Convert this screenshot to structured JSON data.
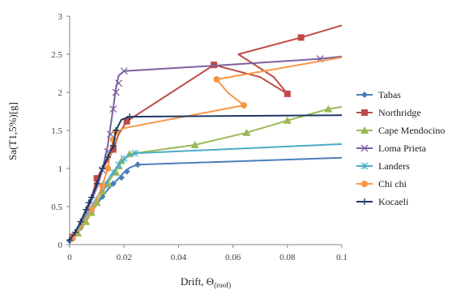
{
  "chart_data": {
    "type": "line",
    "title": "",
    "xlabel": "Drift, Θ",
    "xlabel_sub": "(roof)",
    "ylabel": "Sa(T1,5%)[g]",
    "xlim": [
      0,
      0.1
    ],
    "ylim": [
      0,
      3
    ],
    "xticks": [
      "0",
      "0.02",
      "0.04",
      "0.06",
      "0.08",
      "0.1"
    ],
    "yticks": [
      "0",
      "0.5",
      "1",
      "1.5",
      "2",
      "2.5",
      "3"
    ],
    "grid": false,
    "legend_position": "right",
    "series": [
      {
        "name": "Tabas",
        "color": "#4a7ebb",
        "marker": "diamond",
        "points": [
          [
            0,
            0.05
          ],
          [
            0.002,
            0.12
          ],
          [
            0.004,
            0.22
          ],
          [
            0.006,
            0.32
          ],
          [
            0.008,
            0.43
          ],
          [
            0.01,
            0.53
          ],
          [
            0.012,
            0.63
          ],
          [
            0.014,
            0.72
          ],
          [
            0.016,
            0.8
          ],
          [
            0.018,
            0.87
          ],
          [
            0.02,
            0.95
          ],
          [
            0.022,
            1.01
          ],
          [
            0.025,
            1.05
          ],
          [
            0.1,
            1.14
          ]
        ],
        "marked_points": [
          [
            0,
            0.05
          ],
          [
            0.004,
            0.22
          ],
          [
            0.008,
            0.43
          ],
          [
            0.012,
            0.63
          ],
          [
            0.016,
            0.8
          ],
          [
            0.019,
            0.88
          ],
          [
            0.021,
            0.96
          ],
          [
            0.025,
            1.05
          ]
        ]
      },
      {
        "name": "Northridge",
        "color": "#be4b48",
        "marker": "square",
        "points": [
          [
            0,
            0.06
          ],
          [
            0.002,
            0.15
          ],
          [
            0.004,
            0.3
          ],
          [
            0.006,
            0.45
          ],
          [
            0.008,
            0.6
          ],
          [
            0.01,
            0.87
          ],
          [
            0.012,
            1.0
          ],
          [
            0.014,
            1.1
          ],
          [
            0.016,
            1.25
          ],
          [
            0.018,
            1.45
          ],
          [
            0.021,
            1.62
          ],
          [
            0.053,
            2.36
          ],
          [
            0.07,
            2.2
          ],
          [
            0.08,
            1.98
          ],
          [
            0.075,
            2.2
          ],
          [
            0.062,
            2.5
          ],
          [
            0.085,
            2.72
          ],
          [
            0.1,
            2.88
          ]
        ],
        "marked_points": [
          [
            0.001,
            0.1
          ],
          [
            0.01,
            0.87
          ],
          [
            0.016,
            1.25
          ],
          [
            0.021,
            1.62
          ],
          [
            0.053,
            2.36
          ],
          [
            0.08,
            1.98
          ],
          [
            0.085,
            2.72
          ]
        ]
      },
      {
        "name": "Cape Mendocino",
        "color": "#98b954",
        "marker": "triangle",
        "points": [
          [
            0,
            0.05
          ],
          [
            0.003,
            0.15
          ],
          [
            0.006,
            0.3
          ],
          [
            0.008,
            0.42
          ],
          [
            0.01,
            0.55
          ],
          [
            0.012,
            0.68
          ],
          [
            0.014,
            0.8
          ],
          [
            0.016,
            0.92
          ],
          [
            0.018,
            1.03
          ],
          [
            0.02,
            1.12
          ],
          [
            0.022,
            1.19
          ],
          [
            0.046,
            1.31
          ],
          [
            0.065,
            1.47
          ],
          [
            0.08,
            1.63
          ],
          [
            0.095,
            1.78
          ],
          [
            0.1,
            1.81
          ]
        ],
        "marked_points": [
          [
            0.003,
            0.15
          ],
          [
            0.006,
            0.3
          ],
          [
            0.008,
            0.42
          ],
          [
            0.01,
            0.55
          ],
          [
            0.012,
            0.7
          ],
          [
            0.014,
            0.8
          ],
          [
            0.017,
            0.95
          ],
          [
            0.018,
            1.03
          ],
          [
            0.019,
            1.1
          ],
          [
            0.022,
            1.19
          ],
          [
            0.046,
            1.31
          ],
          [
            0.065,
            1.47
          ],
          [
            0.08,
            1.63
          ],
          [
            0.095,
            1.78
          ]
        ]
      },
      {
        "name": "Loma Prieta",
        "color": "#7d60a0",
        "marker": "x",
        "points": [
          [
            0,
            0.06
          ],
          [
            0.002,
            0.15
          ],
          [
            0.004,
            0.28
          ],
          [
            0.006,
            0.42
          ],
          [
            0.008,
            0.58
          ],
          [
            0.01,
            0.75
          ],
          [
            0.012,
            0.98
          ],
          [
            0.014,
            1.3
          ],
          [
            0.015,
            1.55
          ],
          [
            0.016,
            1.8
          ],
          [
            0.017,
            2.05
          ],
          [
            0.018,
            2.22
          ],
          [
            0.02,
            2.28
          ],
          [
            0.053,
            2.35
          ],
          [
            0.092,
            2.44
          ],
          [
            0.1,
            2.47
          ]
        ],
        "marked_points": [
          [
            0.012,
            0.98
          ],
          [
            0.014,
            1.22
          ],
          [
            0.015,
            1.45
          ],
          [
            0.016,
            1.78
          ],
          [
            0.017,
            2.0
          ],
          [
            0.018,
            2.12
          ],
          [
            0.02,
            2.28
          ],
          [
            0.092,
            2.44
          ]
        ]
      },
      {
        "name": "Landers",
        "color": "#4bacc6",
        "marker": "star",
        "points": [
          [
            0,
            0.05
          ],
          [
            0.002,
            0.12
          ],
          [
            0.004,
            0.25
          ],
          [
            0.006,
            0.38
          ],
          [
            0.008,
            0.5
          ],
          [
            0.01,
            0.62
          ],
          [
            0.012,
            0.73
          ],
          [
            0.014,
            0.85
          ],
          [
            0.016,
            0.95
          ],
          [
            0.018,
            1.05
          ],
          [
            0.02,
            1.12
          ],
          [
            0.022,
            1.18
          ],
          [
            0.024,
            1.2
          ],
          [
            0.1,
            1.32
          ]
        ],
        "marked_points": [
          [
            0.013,
            0.78
          ],
          [
            0.016,
            0.95
          ],
          [
            0.018,
            1.05
          ],
          [
            0.02,
            1.13
          ],
          [
            0.024,
            1.2
          ]
        ]
      },
      {
        "name": "Chi chi",
        "color": "#f79646",
        "marker": "circle",
        "points": [
          [
            0,
            0.05
          ],
          [
            0.002,
            0.12
          ],
          [
            0.004,
            0.22
          ],
          [
            0.006,
            0.34
          ],
          [
            0.008,
            0.46
          ],
          [
            0.01,
            0.6
          ],
          [
            0.012,
            0.77
          ],
          [
            0.014,
            1.0
          ],
          [
            0.015,
            1.2
          ],
          [
            0.016,
            1.38
          ],
          [
            0.017,
            1.48
          ],
          [
            0.02,
            1.53
          ],
          [
            0.064,
            1.83
          ],
          [
            0.058,
            2.0
          ],
          [
            0.054,
            2.17
          ],
          [
            0.1,
            2.46
          ]
        ],
        "marked_points": [
          [
            0.001,
            0.08
          ],
          [
            0.008,
            0.46
          ],
          [
            0.012,
            0.77
          ],
          [
            0.014,
            1.0
          ],
          [
            0.016,
            1.38
          ],
          [
            0.017,
            1.48
          ],
          [
            0.064,
            1.83
          ],
          [
            0.054,
            2.17
          ]
        ]
      },
      {
        "name": "Kocaeli",
        "color": "#1f3864",
        "marker": "plus",
        "points": [
          [
            0,
            0.06
          ],
          [
            0.002,
            0.16
          ],
          [
            0.004,
            0.3
          ],
          [
            0.006,
            0.46
          ],
          [
            0.008,
            0.62
          ],
          [
            0.01,
            0.8
          ],
          [
            0.012,
            1.0
          ],
          [
            0.014,
            1.15
          ],
          [
            0.016,
            1.3
          ],
          [
            0.017,
            1.5
          ],
          [
            0.019,
            1.64
          ],
          [
            0.022,
            1.68
          ],
          [
            0.1,
            1.7
          ]
        ],
        "marked_points": [
          [
            0,
            0.06
          ],
          [
            0.002,
            0.16
          ],
          [
            0.004,
            0.3
          ],
          [
            0.006,
            0.46
          ],
          [
            0.007,
            0.55
          ],
          [
            0.008,
            0.62
          ],
          [
            0.01,
            0.8
          ],
          [
            0.012,
            1.0
          ],
          [
            0.014,
            1.15
          ],
          [
            0.016,
            1.3
          ],
          [
            0.017,
            1.5
          ],
          [
            0.022,
            1.68
          ]
        ]
      }
    ]
  }
}
